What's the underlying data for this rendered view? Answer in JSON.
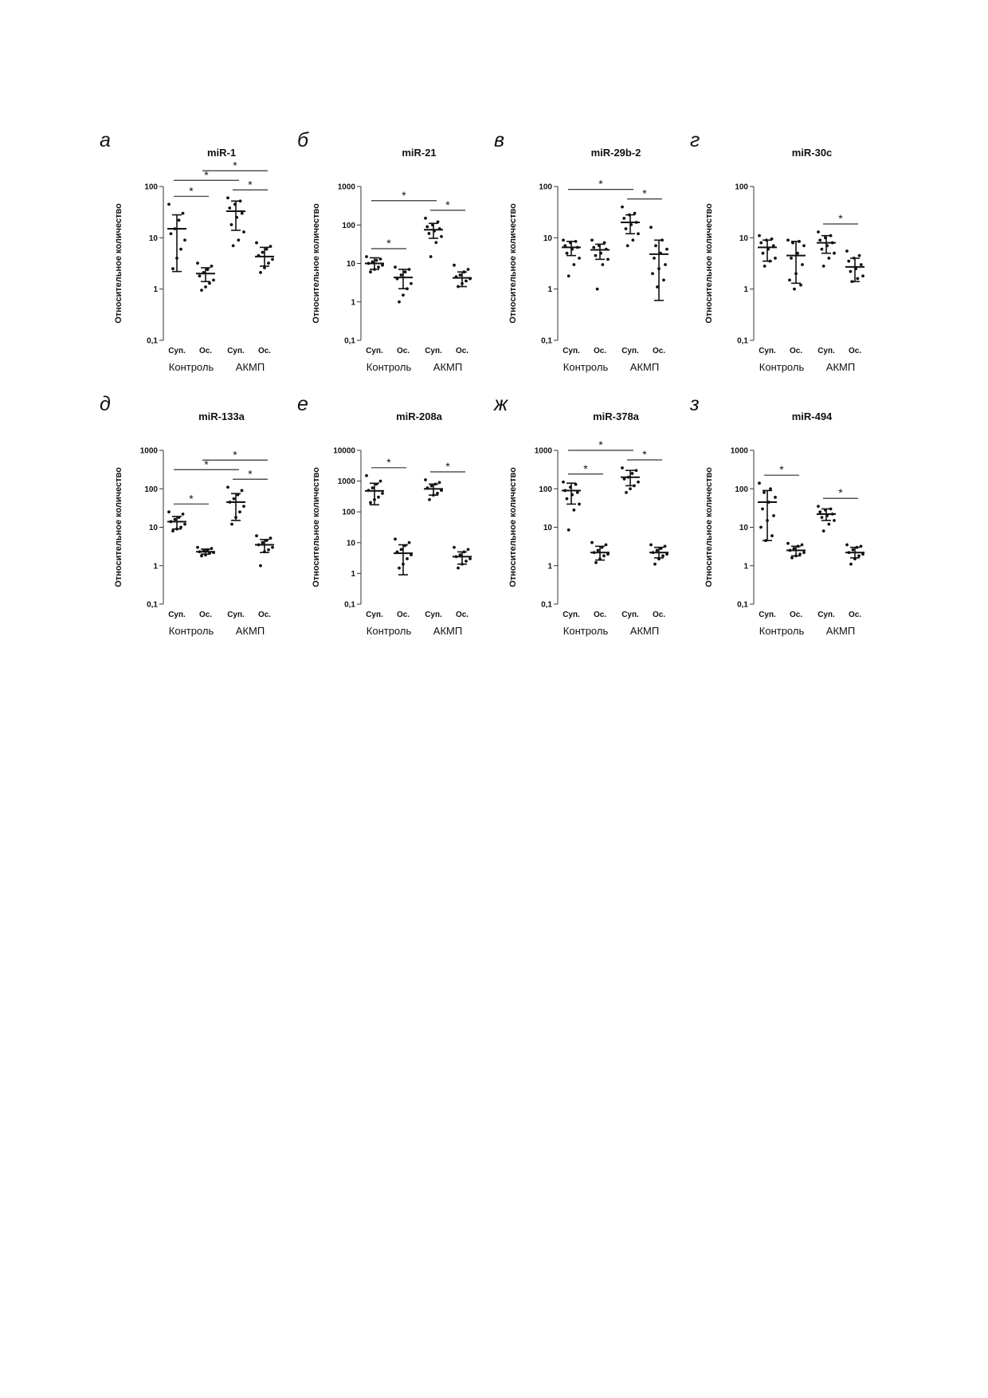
{
  "axis_common": {
    "ylabel": "Относительное количество",
    "categories": [
      "Суп.",
      "Ос.",
      "Суп.",
      "Ос."
    ],
    "groups": [
      "Контроль",
      "АКМП"
    ]
  },
  "chart_data": [
    {
      "panel_label": "а",
      "title": "miR-1",
      "type": "scatter",
      "yscale": "log",
      "ylim": [
        0.1,
        100
      ],
      "ylabel": "Относительное количество",
      "yticks": [
        {
          "v": 100,
          "t": "100"
        },
        {
          "v": 10,
          "t": "10"
        },
        {
          "v": 1,
          "t": "1"
        },
        {
          "v": 0.1,
          "t": "0,1"
        }
      ],
      "categories": [
        "Суп.",
        "Ос.",
        "Суп.",
        "Ос."
      ],
      "groups": [
        "Контроль",
        "АКМП"
      ],
      "series": [
        {
          "category": "Суп.",
          "group": "Контроль",
          "mean": 15,
          "err_low": 2.2,
          "err_high": 28,
          "points": [
            45,
            30,
            22,
            15,
            12,
            9,
            6,
            4,
            2.5
          ]
        },
        {
          "category": "Ос.",
          "group": "Контроль",
          "mean": 2.0,
          "err_low": 1.4,
          "err_high": 2.6,
          "points": [
            3.2,
            2.8,
            2.4,
            2.1,
            1.8,
            1.5,
            1.3,
            1.1,
            0.95
          ]
        },
        {
          "category": "Суп.",
          "group": "АКМП",
          "mean": 33,
          "err_low": 14,
          "err_high": 52,
          "points": [
            60,
            52,
            45,
            38,
            30,
            25,
            18,
            13,
            9,
            7
          ]
        },
        {
          "category": "Ос.",
          "group": "АКМП",
          "mean": 4.3,
          "err_low": 2.8,
          "err_high": 6.5,
          "points": [
            8,
            6.8,
            6,
            5.2,
            4.5,
            3.8,
            3.2,
            2.6,
            2.1
          ]
        }
      ],
      "significance": [
        {
          "from": 0,
          "to": 1,
          "label": "*"
        },
        {
          "from": 0,
          "to": 2,
          "label": "*"
        },
        {
          "from": 1,
          "to": 3,
          "label": "*"
        },
        {
          "from": 2,
          "to": 3,
          "label": "*"
        }
      ]
    },
    {
      "panel_label": "б",
      "title": "miR-21",
      "type": "scatter",
      "yscale": "log",
      "ylim": [
        0.1,
        1000
      ],
      "ylabel": "Относительное количество",
      "yticks": [
        {
          "v": 1000,
          "t": "1000"
        },
        {
          "v": 100,
          "t": "100"
        },
        {
          "v": 10,
          "t": "10"
        },
        {
          "v": 1,
          "t": "1"
        },
        {
          "v": 0.1,
          "t": "0,1"
        }
      ],
      "categories": [
        "Суп.",
        "Ос.",
        "Суп.",
        "Ос."
      ],
      "groups": [
        "Контроль",
        "АКМП"
      ],
      "series": [
        {
          "category": "Суп.",
          "group": "Контроль",
          "mean": 10,
          "err_low": 7,
          "err_high": 14,
          "points": [
            15,
            13,
            12,
            11,
            10,
            9,
            8,
            7,
            6
          ]
        },
        {
          "category": "Ос.",
          "group": "Контроль",
          "mean": 4.3,
          "err_low": 2.2,
          "err_high": 7,
          "points": [
            8,
            7,
            6,
            5,
            4,
            3,
            2.2,
            1.5,
            1.0
          ]
        },
        {
          "category": "Суп.",
          "group": "АКМП",
          "mean": 75,
          "err_low": 45,
          "err_high": 110,
          "points": [
            150,
            120,
            100,
            90,
            80,
            70,
            60,
            50,
            35,
            15
          ]
        },
        {
          "category": "Ос.",
          "group": "АКМП",
          "mean": 4.2,
          "err_low": 2.5,
          "err_high": 6,
          "points": [
            9,
            7,
            6,
            5,
            4.5,
            4,
            3.5,
            3,
            2.5
          ]
        }
      ],
      "significance": [
        {
          "from": 0,
          "to": 1,
          "label": "*"
        },
        {
          "from": 0,
          "to": 2,
          "label": "*"
        },
        {
          "from": 2,
          "to": 3,
          "label": "*"
        }
      ]
    },
    {
      "panel_label": "в",
      "title": "miR-29b-2",
      "type": "scatter",
      "yscale": "log",
      "ylim": [
        0.1,
        100
      ],
      "ylabel": "Относительное количество",
      "yticks": [
        {
          "v": 100,
          "t": "100"
        },
        {
          "v": 10,
          "t": "10"
        },
        {
          "v": 1,
          "t": "1"
        },
        {
          "v": 0.1,
          "t": "0,1"
        }
      ],
      "categories": [
        "Суп.",
        "Ос.",
        "Суп.",
        "Ос."
      ],
      "groups": [
        "Контроль",
        "АКМП"
      ],
      "series": [
        {
          "category": "Суп.",
          "group": "Контроль",
          "mean": 6.5,
          "err_low": 4.5,
          "err_high": 8.5,
          "points": [
            9,
            8.5,
            8,
            7,
            6.5,
            6,
            5,
            4,
            3,
            1.8
          ]
        },
        {
          "category": "Ос.",
          "group": "Контроль",
          "mean": 5.8,
          "err_low": 3.8,
          "err_high": 7.5,
          "points": [
            9,
            8,
            7,
            6.5,
            6,
            5,
            4.5,
            3.8,
            3,
            1.0
          ]
        },
        {
          "category": "Суп.",
          "group": "АКМП",
          "mean": 20,
          "err_low": 12,
          "err_high": 28,
          "points": [
            40,
            30,
            28,
            24,
            20,
            18,
            15,
            12,
            9,
            7
          ]
        },
        {
          "category": "Ос.",
          "group": "АКМП",
          "mean": 4.8,
          "err_low": 0.6,
          "err_high": 9,
          "points": [
            16,
            9,
            7,
            6,
            5,
            4,
            3,
            2.5,
            2,
            1.5,
            1.1
          ]
        }
      ],
      "significance": [
        {
          "from": 0,
          "to": 2,
          "label": "*"
        },
        {
          "from": 2,
          "to": 3,
          "label": "*"
        }
      ]
    },
    {
      "panel_label": "г",
      "title": "miR-30c",
      "type": "scatter",
      "yscale": "log",
      "ylim": [
        0.1,
        100
      ],
      "ylabel": "Относительное количество",
      "yticks": [
        {
          "v": 100,
          "t": "100"
        },
        {
          "v": 10,
          "t": "10"
        },
        {
          "v": 1,
          "t": "1"
        },
        {
          "v": 0.1,
          "t": "0,1"
        }
      ],
      "categories": [
        "Суп.",
        "Ос.",
        "Суп.",
        "Ос."
      ],
      "groups": [
        "Контроль",
        "АКМП"
      ],
      "series": [
        {
          "category": "Суп.",
          "group": "Контроль",
          "mean": 6.5,
          "err_low": 3.5,
          "err_high": 9,
          "points": [
            11,
            9.5,
            9,
            8,
            7,
            6,
            5,
            4,
            3.5,
            2.8
          ]
        },
        {
          "category": "Ос.",
          "group": "Контроль",
          "mean": 4.5,
          "err_low": 1.3,
          "err_high": 8.5,
          "points": [
            9,
            8.5,
            8,
            7,
            5,
            4,
            3,
            2,
            1.5,
            1.2,
            1.0
          ]
        },
        {
          "category": "Суп.",
          "group": "АКМП",
          "mean": 8,
          "err_low": 5,
          "err_high": 11,
          "points": [
            13,
            11,
            10,
            9,
            8,
            7,
            6,
            5,
            4,
            2.8
          ]
        },
        {
          "category": "Ос.",
          "group": "АКМП",
          "mean": 2.7,
          "err_low": 1.4,
          "err_high": 4,
          "points": [
            5.5,
            4.5,
            4,
            3.5,
            3,
            2.5,
            2.2,
            1.8,
            1.6,
            1.4
          ]
        }
      ],
      "significance": [
        {
          "from": 2,
          "to": 3,
          "label": "*"
        }
      ]
    },
    {
      "panel_label": "д",
      "title": "miR-133a",
      "type": "scatter",
      "yscale": "log",
      "ylim": [
        0.1,
        1000
      ],
      "ylabel": "Относительное количество",
      "yticks": [
        {
          "v": 1000,
          "t": "1000"
        },
        {
          "v": 100,
          "t": "100"
        },
        {
          "v": 10,
          "t": "10"
        },
        {
          "v": 1,
          "t": "1"
        },
        {
          "v": 0.1,
          "t": "0,1"
        }
      ],
      "categories": [
        "Суп.",
        "Ос.",
        "Суп.",
        "Ос."
      ],
      "groups": [
        "Контроль",
        "АКМП"
      ],
      "series": [
        {
          "category": "Суп.",
          "group": "Контроль",
          "mean": 14,
          "err_low": 9,
          "err_high": 19,
          "points": [
            25,
            22,
            18,
            16,
            14,
            12,
            10,
            9,
            8
          ]
        },
        {
          "category": "Ос.",
          "group": "Контроль",
          "mean": 2.3,
          "err_low": 2.0,
          "err_high": 2.7,
          "points": [
            3.0,
            2.8,
            2.6,
            2.4,
            2.3,
            2.2,
            2.1,
            1.9,
            1.8
          ]
        },
        {
          "category": "Суп.",
          "group": "АКМП",
          "mean": 45,
          "err_low": 15,
          "err_high": 75,
          "points": [
            110,
            90,
            70,
            55,
            45,
            35,
            25,
            18,
            12
          ]
        },
        {
          "category": "Ос.",
          "group": "АКМП",
          "mean": 3.5,
          "err_low": 2.2,
          "err_high": 4.8,
          "points": [
            6,
            5.2,
            4.5,
            4,
            3.5,
            3,
            2.6,
            2.3,
            1.0
          ]
        }
      ],
      "significance": [
        {
          "from": 0,
          "to": 1,
          "label": "*"
        },
        {
          "from": 0,
          "to": 2,
          "label": "*"
        },
        {
          "from": 1,
          "to": 3,
          "label": "*"
        },
        {
          "from": 2,
          "to": 3,
          "label": "*"
        }
      ]
    },
    {
      "panel_label": "е",
      "title": "miR-208a",
      "type": "scatter",
      "yscale": "log",
      "ylim": [
        0.1,
        10000
      ],
      "ylabel": "Относительное количество",
      "yticks": [
        {
          "v": 10000,
          "t": "10000"
        },
        {
          "v": 1000,
          "t": "1000"
        },
        {
          "v": 100,
          "t": "100"
        },
        {
          "v": 10,
          "t": "10"
        },
        {
          "v": 1,
          "t": "1"
        },
        {
          "v": 0.1,
          "t": "0,1"
        }
      ],
      "categories": [
        "Суп.",
        "Ос.",
        "Суп.",
        "Ос."
      ],
      "groups": [
        "Контроль",
        "АКМП"
      ],
      "series": [
        {
          "category": "Суп.",
          "group": "Контроль",
          "mean": 480,
          "err_low": 170,
          "err_high": 850,
          "points": [
            1500,
            1000,
            800,
            600,
            500,
            400,
            300,
            250,
            200
          ]
        },
        {
          "category": "Ос.",
          "group": "Контроль",
          "mean": 4.5,
          "err_low": 0.9,
          "err_high": 8.5,
          "points": [
            13,
            10,
            8,
            6,
            5,
            4,
            3,
            2,
            1.5
          ]
        },
        {
          "category": "Суп.",
          "group": "АКМП",
          "mean": 560,
          "err_low": 350,
          "err_high": 800,
          "points": [
            1100,
            900,
            800,
            700,
            600,
            500,
            400,
            350,
            250
          ]
        },
        {
          "category": "Ос.",
          "group": "АКМП",
          "mean": 3.5,
          "err_low": 2.0,
          "err_high": 5,
          "points": [
            7,
            6,
            5,
            4,
            3.5,
            3,
            2.5,
            2,
            1.5
          ]
        }
      ],
      "significance": [
        {
          "from": 0,
          "to": 1,
          "label": "*"
        },
        {
          "from": 2,
          "to": 3,
          "label": "*"
        }
      ]
    },
    {
      "panel_label": "ж",
      "title": "miR-378a",
      "type": "scatter",
      "yscale": "log",
      "ylim": [
        0.1,
        1000
      ],
      "ylabel": "Относительное количество",
      "yticks": [
        {
          "v": 1000,
          "t": "1000"
        },
        {
          "v": 100,
          "t": "100"
        },
        {
          "v": 10,
          "t": "10"
        },
        {
          "v": 1,
          "t": "1"
        },
        {
          "v": 0.1,
          "t": "0,1"
        }
      ],
      "categories": [
        "Суп.",
        "Ос.",
        "Суп.",
        "Ос."
      ],
      "groups": [
        "Контроль",
        "АКМП"
      ],
      "series": [
        {
          "category": "Суп.",
          "group": "Контроль",
          "mean": 90,
          "err_low": 40,
          "err_high": 140,
          "points": [
            150,
            130,
            110,
            90,
            80,
            70,
            55,
            40,
            28,
            8.5
          ]
        },
        {
          "category": "Ос.",
          "group": "Контроль",
          "mean": 2.2,
          "err_low": 1.4,
          "err_high": 3.2,
          "points": [
            4,
            3.5,
            3,
            2.5,
            2.2,
            2,
            1.8,
            1.5,
            1.2
          ]
        },
        {
          "category": "Суп.",
          "group": "АКМП",
          "mean": 200,
          "err_low": 120,
          "err_high": 300,
          "points": [
            350,
            300,
            250,
            200,
            180,
            150,
            120,
            100,
            80
          ]
        },
        {
          "category": "Ос.",
          "group": "АКМП",
          "mean": 2.2,
          "err_low": 1.6,
          "err_high": 3,
          "points": [
            3.5,
            3.2,
            2.8,
            2.5,
            2.2,
            2,
            1.8,
            1.5,
            1.1
          ]
        }
      ],
      "significance": [
        {
          "from": 0,
          "to": 1,
          "label": "*"
        },
        {
          "from": 0,
          "to": 2,
          "label": "*"
        },
        {
          "from": 2,
          "to": 3,
          "label": "*"
        }
      ]
    },
    {
      "panel_label": "з",
      "title": "miR-494",
      "type": "scatter",
      "yscale": "log",
      "ylim": [
        0.1,
        1000
      ],
      "ylabel": "Относительное количество",
      "yticks": [
        {
          "v": 1000,
          "t": "1000"
        },
        {
          "v": 100,
          "t": "100"
        },
        {
          "v": 10,
          "t": "10"
        },
        {
          "v": 1,
          "t": "1"
        },
        {
          "v": 0.1,
          "t": "0,1"
        }
      ],
      "categories": [
        "Суп.",
        "Ос.",
        "Суп.",
        "Ос."
      ],
      "groups": [
        "Контроль",
        "АКМП"
      ],
      "series": [
        {
          "category": "Суп.",
          "group": "Контроль",
          "mean": 45,
          "err_low": 4.5,
          "err_high": 90,
          "points": [
            140,
            100,
            80,
            60,
            45,
            30,
            20,
            15,
            10,
            6,
            4.5
          ]
        },
        {
          "category": "Ос.",
          "group": "Контроль",
          "mean": 2.5,
          "err_low": 1.8,
          "err_high": 3.2,
          "points": [
            3.8,
            3.5,
            3.2,
            2.8,
            2.5,
            2.2,
            2,
            1.8,
            1.6
          ]
        },
        {
          "category": "Суп.",
          "group": "АКМП",
          "mean": 22,
          "err_low": 15,
          "err_high": 30,
          "points": [
            35,
            30,
            28,
            25,
            22,
            20,
            18,
            15,
            12,
            8
          ]
        },
        {
          "category": "Ос.",
          "group": "АКМП",
          "mean": 2.2,
          "err_low": 1.6,
          "err_high": 3,
          "points": [
            3.5,
            3.2,
            3,
            2.6,
            2.2,
            2,
            1.8,
            1.5,
            1.1
          ]
        }
      ],
      "significance": [
        {
          "from": 0,
          "to": 1,
          "label": "*"
        },
        {
          "from": 2,
          "to": 3,
          "label": "*"
        }
      ]
    }
  ]
}
